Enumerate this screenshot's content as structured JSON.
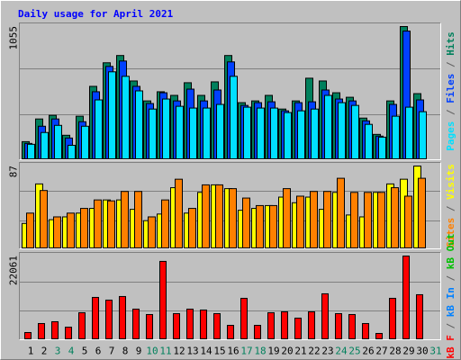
{
  "chart_data": [
    {
      "type": "bar",
      "title": "Daily usage for April 2021",
      "ylim": [
        0,
        1055
      ],
      "yticks": [
        1055
      ],
      "legend_separator": " / ",
      "series": [
        {
          "name": "Hits",
          "color": "#00805c",
          "values": [
            137,
            318,
            347,
            188,
            340,
            578,
            766,
            824,
            621,
            462,
            535,
            506,
            607,
            506,
            614,
            824,
            448,
            462,
            506,
            397,
            462,
            643,
            621,
            527,
            491,
            325,
            195,
            462,
            1055,
            520,
            null
          ]
        },
        {
          "name": "Files",
          "color": "#0040ff",
          "values": [
            123,
            260,
            318,
            166,
            296,
            535,
            737,
            780,
            578,
            441,
            527,
            462,
            556,
            462,
            549,
            773,
            426,
            448,
            455,
            383,
            448,
            455,
            549,
            477,
            462,
            303,
            181,
            434,
            1019,
            470,
            null
          ]
        },
        {
          "name": "Pages",
          "color": "#00e0ff",
          "values": [
            116,
            210,
            267,
            108,
            260,
            470,
            694,
            658,
            542,
            397,
            477,
            419,
            405,
            405,
            434,
            658,
            412,
            405,
            405,
            369,
            383,
            397,
            506,
            448,
            426,
            275,
            173,
            340,
            412,
            376,
            null
          ]
        }
      ]
    },
    {
      "type": "bar",
      "ylim": [
        0,
        87
      ],
      "yticks": [
        87
      ],
      "legend_separator": " / ",
      "series": [
        {
          "name": "Visits",
          "color": "#ffff00",
          "values": [
            26,
            68,
            30,
            33,
            37,
            42,
            51,
            51,
            41,
            29,
            36,
            64,
            37,
            59,
            67,
            63,
            40,
            42,
            45,
            54,
            48,
            54,
            41,
            59,
            35,
            33,
            59,
            68,
            73,
            87,
            null
          ]
        },
        {
          "name": "Sites",
          "color": "#ff8000",
          "values": [
            37,
            61,
            33,
            37,
            42,
            51,
            50,
            60,
            60,
            33,
            51,
            73,
            42,
            67,
            67,
            63,
            53,
            45,
            45,
            63,
            55,
            60,
            60,
            74,
            59,
            59,
            59,
            64,
            55,
            74,
            null
          ]
        }
      ]
    },
    {
      "type": "bar",
      "ylim": [
        0,
        22061
      ],
      "yticks": [
        22061
      ],
      "legend_separator": " / ",
      "categories": [
        "1",
        "2",
        "3",
        "4",
        "5",
        "6",
        "7",
        "8",
        "9",
        "10",
        "11",
        "12",
        "13",
        "14",
        "15",
        "16",
        "17",
        "18",
        "19",
        "20",
        "21",
        "22",
        "23",
        "24",
        "25",
        "26",
        "27",
        "28",
        "29",
        "30",
        "31"
      ],
      "weekend_categories": [
        "3",
        "4",
        "10",
        "11",
        "17",
        "18",
        "24",
        "25",
        "31"
      ],
      "weekend_color": "#00805c",
      "series": [
        {
          "name": "kB F",
          "color": "#ff0000",
          "values": [
            1680,
            4080,
            4560,
            3120,
            6960,
            11040,
            10320,
            11280,
            7920,
            6480,
            20640,
            6720,
            7920,
            7680,
            6720,
            3600,
            10800,
            3600,
            6960,
            7200,
            5520,
            7200,
            12000,
            6720,
            6480,
            4080,
            1440,
            10800,
            22061,
            11760,
            null
          ]
        },
        {
          "name": "kB In",
          "color": "#0080ff"
        },
        {
          "name": "kB Out",
          "color": "#00c000"
        }
      ]
    }
  ]
}
